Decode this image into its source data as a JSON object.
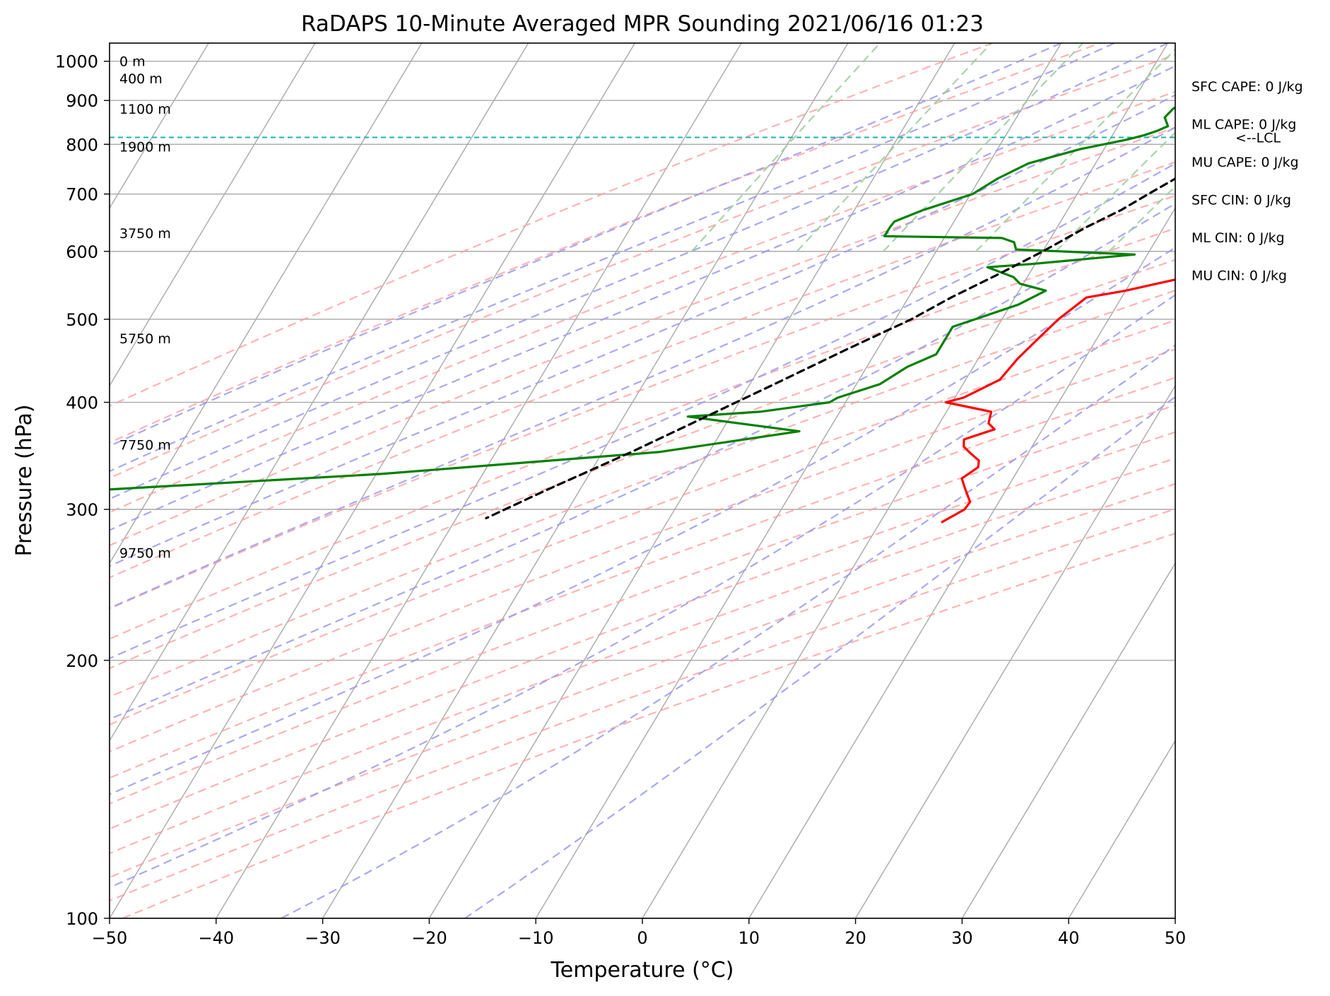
{
  "chart_data": {
    "type": "skew-t",
    "title": "RaDAPS 10-Minute Averaged MPR Sounding 2021/06/16 01:23",
    "xlabel": "Temperature (°C)",
    "ylabel": "Pressure (hPa)",
    "xlim": [
      -50,
      50
    ],
    "ylim": [
      1050,
      100
    ],
    "y_scale": "log",
    "x_ticks": [
      -50,
      -40,
      -30,
      -20,
      -10,
      0,
      10,
      20,
      30,
      40,
      50
    ],
    "x_tick_labels": [
      "−50",
      "−40",
      "−30",
      "−20",
      "−10",
      "0",
      "10",
      "20",
      "30",
      "40",
      "50"
    ],
    "y_ticks": [
      1000,
      900,
      800,
      700,
      600,
      500,
      400,
      300,
      200,
      100
    ],
    "y_tick_labels": [
      "1000",
      "900",
      "800",
      "700",
      "600",
      "500",
      "400",
      "300",
      "200",
      "100"
    ],
    "grid": true,
    "colors": {
      "temperature": "#ff0000",
      "dewpoint": "#008000",
      "parcel": "#000000",
      "isotherm": "#a9a9a9",
      "dry_adiabat": "#ff9999",
      "moist_adiabat": "#9999ee",
      "mixing_ratio": "#99cc99",
      "lcl": "#20b2aa"
    },
    "isotherms": [
      -150,
      -140,
      -130,
      -120,
      -110,
      -100,
      -90,
      -80,
      -70,
      -60,
      -50,
      -40,
      -30,
      -20,
      -10,
      0,
      10,
      20,
      30,
      40,
      50
    ],
    "dry_adiabats": [
      -20,
      -10,
      0,
      10,
      20,
      30,
      40,
      50,
      60,
      70,
      80,
      90,
      100,
      110,
      120,
      130,
      140,
      150,
      160
    ],
    "moist_adiabats": [
      -10,
      -5,
      0,
      5,
      10,
      15,
      20,
      25,
      30,
      35,
      40,
      45
    ],
    "mixing_ratios": [
      0.4,
      1,
      2,
      4,
      7,
      10,
      16,
      24,
      32
    ],
    "series": [
      {
        "role": "temperature",
        "points": [
          [
            26.5,
            993
          ],
          [
            11.6,
            991
          ],
          [
            11.2,
            977
          ],
          [
            12.3,
            973
          ],
          [
            32,
            960
          ],
          [
            36.2,
            949
          ],
          [
            36.8,
            930
          ],
          [
            37.2,
            920
          ],
          [
            36,
            904
          ],
          [
            35,
            893
          ],
          [
            34.4,
            880
          ],
          [
            34,
            865
          ],
          [
            34,
            858
          ],
          [
            34.1,
            850
          ],
          [
            33.2,
            836
          ],
          [
            32.2,
            810
          ],
          [
            31.3,
            785
          ],
          [
            30.5,
            760
          ],
          [
            30,
            740
          ],
          [
            29.4,
            720
          ],
          [
            27.5,
            680
          ],
          [
            25.5,
            650
          ],
          [
            21.5,
            610
          ],
          [
            18.3,
            580
          ],
          [
            15,
            560
          ],
          [
            12.5,
            550
          ],
          [
            10,
            540
          ],
          [
            6.7,
            530
          ],
          [
            5.3,
            500
          ],
          [
            4.5,
            475
          ],
          [
            3.7,
            450
          ],
          [
            3.2,
            425
          ],
          [
            0.8,
            405
          ],
          [
            -0.6,
            400
          ],
          [
            4.2,
            390
          ],
          [
            4.6,
            378
          ],
          [
            5.5,
            372
          ],
          [
            3.2,
            362
          ],
          [
            3.6,
            355
          ],
          [
            4.4,
            350
          ],
          [
            5.8,
            342
          ],
          [
            6.1,
            336
          ],
          [
            5.2,
            326
          ],
          [
            6,
            318
          ],
          [
            7.3,
            306
          ],
          [
            7.2,
            300
          ],
          [
            5.8,
            290
          ]
        ]
      },
      {
        "role": "dewpoint",
        "points": [
          [
            13,
            993
          ],
          [
            6,
            990
          ],
          [
            5,
            985
          ],
          [
            4.7,
            975
          ],
          [
            5.7,
            963
          ],
          [
            7.9,
            952
          ],
          [
            6.8,
            945
          ],
          [
            5.4,
            942
          ],
          [
            5.2,
            935
          ],
          [
            5.2,
            925
          ],
          [
            5.2,
            905
          ],
          [
            4.8,
            895
          ],
          [
            4.2,
            880
          ],
          [
            3.9,
            860
          ],
          [
            4.7,
            840
          ],
          [
            4,
            830
          ],
          [
            3,
            820
          ],
          [
            1.6,
            810
          ],
          [
            -2.2,
            790
          ],
          [
            -6.3,
            760
          ],
          [
            -8.3,
            730
          ],
          [
            -9.8,
            700
          ],
          [
            -13.6,
            670
          ],
          [
            -15.6,
            650
          ],
          [
            -15.7,
            640
          ],
          [
            -15.7,
            625
          ],
          [
            -4.6,
            622
          ],
          [
            -3.2,
            615
          ],
          [
            -2.6,
            603
          ],
          [
            8.8,
            595
          ],
          [
            -0.3,
            580
          ],
          [
            -4.3,
            575
          ],
          [
            -1.3,
            560
          ],
          [
            -0.3,
            550
          ],
          [
            2.5,
            540
          ],
          [
            0.7,
            520
          ],
          [
            -4.2,
            490
          ],
          [
            -4.2,
            465
          ],
          [
            -4.2,
            455
          ],
          [
            -6.2,
            440
          ],
          [
            -7.8,
            420
          ],
          [
            -11,
            405
          ],
          [
            -11.5,
            400
          ],
          [
            -17.5,
            390
          ],
          [
            -24,
            385
          ],
          [
            -12.7,
            370
          ],
          [
            -24.7,
            350
          ],
          [
            -49.5,
            330
          ],
          [
            -77,
            315
          ]
        ]
      },
      {
        "role": "parcel",
        "points": [
          [
            26.5,
            993
          ],
          [
            21.5,
            940
          ],
          [
            16.5,
            892
          ],
          [
            13.3,
            862
          ],
          [
            12.6,
            810
          ],
          [
            10,
            760
          ],
          [
            6.8,
            702
          ],
          [
            5,
            670
          ],
          [
            2.7,
            640
          ],
          [
            0,
            600
          ],
          [
            -2.8,
            565
          ],
          [
            -6,
            530
          ],
          [
            -8.5,
            500
          ],
          [
            -13,
            460
          ],
          [
            -17.7,
            420
          ],
          [
            -22.4,
            384
          ],
          [
            -27.3,
            350
          ],
          [
            -33.3,
            315
          ],
          [
            -37.2,
            293
          ]
        ]
      }
    ],
    "lcl": {
      "pressure": 815,
      "label": "<--LCL"
    },
    "height_labels": [
      {
        "pressure": 1000,
        "label": "0 m"
      },
      {
        "pressure": 955,
        "label": "400 m"
      },
      {
        "pressure": 880,
        "label": "1100 m"
      },
      {
        "pressure": 795,
        "label": "1900 m"
      },
      {
        "pressure": 630,
        "label": "3750 m"
      },
      {
        "pressure": 475,
        "label": "5750 m"
      },
      {
        "pressure": 357,
        "label": "7750 m"
      },
      {
        "pressure": 267,
        "label": "9750 m"
      }
    ],
    "stats": [
      "SFC CAPE: 0 J/kg",
      "ML CAPE: 0 J/kg",
      "MU CAPE: 0 J/kg",
      "SFC CIN: 0 J/kg",
      "ML CIN: 0 J/kg",
      "MU CIN: 0 J/kg"
    ]
  }
}
